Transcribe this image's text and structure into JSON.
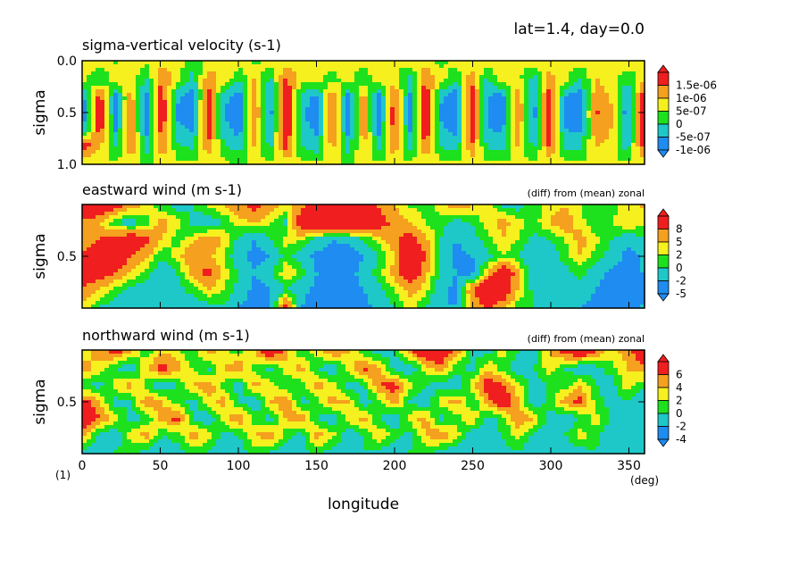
{
  "header": {
    "label": "lat=1.4, day=0.0"
  },
  "shared_axis": {
    "xlabel": "longitude",
    "x_ticks": [
      "0",
      "50",
      "100",
      "150",
      "200",
      "250",
      "300",
      "350"
    ],
    "xlim": [
      0,
      360
    ],
    "x_unit": "(deg)",
    "page_tag": "(1)"
  },
  "chart_data": [
    {
      "type": "heatmap",
      "title": "sigma-vertical velocity (s-1)",
      "subtitle": "",
      "xlabel": "longitude",
      "ylabel": "sigma",
      "y_ticks": [
        "0.0",
        "0.5",
        "1.0"
      ],
      "ylim": [
        0.0,
        1.0
      ],
      "y_inverted": true,
      "legend_labels": [
        "1.5e-06",
        "1e-06",
        "5e-07",
        "0",
        "-5e-07",
        "-1e-06"
      ],
      "levels": [
        -1.5e-06,
        -1e-06,
        -5e-07,
        0,
        5e-07,
        1e-06,
        1.5e-06
      ],
      "values": [
        [
          0.2,
          0.3,
          -0.1,
          0.4,
          0.1,
          0.3,
          0.2,
          -0.2,
          0.1,
          0.5,
          0.2,
          -0.1,
          0.3,
          0.2,
          0.1,
          0.4,
          0.2,
          0.1,
          0.3,
          0.2,
          0.0,
          0.2,
          0.3,
          -0.1,
          0.2,
          0.1,
          0.3,
          0.2,
          0.1,
          0.2,
          0.3,
          0.1,
          0.2,
          0.1,
          0.2,
          0.3,
          0.1
        ],
        [
          0.1,
          -0.6,
          0.4,
          0.3,
          -0.5,
          1.1,
          0.2,
          -0.8,
          0.9,
          0.3,
          -0.4,
          0.6,
          -0.7,
          1.2,
          0.3,
          0.2,
          -0.3,
          0.4,
          -0.6,
          0.5,
          0.2,
          -0.7,
          1.0,
          0.3,
          -0.5,
          0.9,
          -0.6,
          0.4,
          0.2,
          -0.8,
          0.7,
          0.2,
          -0.6,
          0.5,
          0.3,
          -0.4,
          0.2
        ],
        [
          -0.9,
          1.3,
          -1.2,
          0.8,
          -1.3,
          1.4,
          -0.9,
          -1.2,
          1.2,
          -0.8,
          -1.3,
          0.9,
          -1.2,
          1.6,
          -0.7,
          -1.1,
          1.0,
          -1.2,
          0.8,
          -1.3,
          1.2,
          -1.1,
          1.5,
          -0.9,
          -1.3,
          1.4,
          -1.0,
          -1.2,
          0.9,
          -1.1,
          1.4,
          -1.0,
          -1.2,
          0.9,
          0.4,
          -1.1,
          1.3
        ],
        [
          -1.2,
          1.6,
          -1.3,
          1.0,
          -1.4,
          1.6,
          -1.1,
          -1.3,
          1.5,
          -1.0,
          -1.4,
          1.1,
          -1.3,
          1.8,
          -0.9,
          -1.3,
          1.2,
          -1.4,
          1.0,
          -1.4,
          1.4,
          -1.3,
          1.7,
          -1.1,
          -1.4,
          1.6,
          -1.2,
          -1.3,
          1.1,
          -1.3,
          1.6,
          -1.2,
          -1.3,
          1.1,
          0.6,
          -1.3,
          1.6
        ],
        [
          -0.8,
          1.4,
          -1.1,
          0.9,
          -1.2,
          1.3,
          -0.9,
          -1.1,
          1.3,
          -0.8,
          -1.2,
          0.9,
          -1.1,
          1.7,
          -0.8,
          -1.1,
          1.0,
          -1.2,
          0.9,
          -1.2,
          1.3,
          -1.1,
          1.5,
          -0.9,
          -1.2,
          1.4,
          -1.0,
          -1.1,
          0.9,
          -1.1,
          1.5,
          -1.0,
          -1.1,
          0.9,
          0.5,
          -1.2,
          1.5
        ],
        [
          1.3,
          0.6,
          -0.6,
          1.1,
          -0.8,
          1.0,
          -0.4,
          -0.7,
          1.0,
          -0.5,
          -0.8,
          0.6,
          -0.7,
          1.3,
          -0.5,
          -0.8,
          0.7,
          -0.8,
          0.6,
          -0.7,
          0.9,
          -0.7,
          1.1,
          -0.5,
          -0.8,
          1.0,
          -0.6,
          -0.7,
          0.6,
          -0.7,
          1.1,
          -0.6,
          -0.7,
          0.6,
          0.3,
          -0.8,
          1.1
        ],
        [
          0.2,
          0.1,
          0.0,
          0.2,
          -0.1,
          0.2,
          0.1,
          0.0,
          0.2,
          0.1,
          -0.1,
          0.1,
          0.0,
          0.3,
          0.1,
          0.0,
          0.1,
          -0.1,
          0.1,
          0.0,
          0.2,
          0.0,
          0.2,
          0.1,
          0.0,
          0.2,
          0.1,
          0.0,
          0.1,
          0.0,
          0.2,
          0.1,
          0.0,
          0.1,
          0.1,
          0.0,
          0.2
        ]
      ]
    },
    {
      "type": "heatmap",
      "title": "eastward wind (m s-1)",
      "subtitle": "(diff) from (mean) zonal",
      "xlabel": "longitude",
      "ylabel": "sigma",
      "y_ticks": [
        "0.5"
      ],
      "ylim": [
        0.0,
        1.0
      ],
      "y_inverted": true,
      "legend_labels": [
        "8",
        "5",
        "2",
        "0",
        "-2",
        "-5"
      ],
      "levels": [
        -8,
        -5,
        -2,
        0,
        2,
        5,
        8
      ],
      "values": [
        [
          9,
          9,
          6,
          3,
          1,
          -1,
          -3,
          -2,
          0,
          2,
          4,
          6,
          3,
          1,
          4,
          9,
          9,
          7,
          6,
          5,
          2,
          0,
          -1,
          1,
          3,
          2,
          1,
          -2,
          -3,
          -1,
          1,
          2,
          0,
          -2,
          -1,
          1,
          2
        ],
        [
          4,
          2,
          -2,
          -4,
          -1,
          3,
          1,
          -3,
          -4,
          -2,
          1,
          2,
          0,
          -3,
          9,
          9,
          9,
          9,
          9,
          7,
          4,
          2,
          0,
          -1,
          -3,
          -2,
          1,
          3,
          1,
          -1,
          2,
          4,
          1,
          -2,
          0,
          2,
          1
        ],
        [
          3,
          5,
          7,
          9,
          6,
          2,
          -1,
          1,
          4,
          2,
          -3,
          -5,
          -2,
          1,
          0,
          -3,
          -5,
          -4,
          -2,
          1,
          4,
          7,
          3,
          -2,
          -5,
          -3,
          -1,
          2,
          0,
          -3,
          -2,
          0,
          3,
          1,
          -2,
          -4,
          -3
        ],
        [
          6,
          9,
          9,
          5,
          3,
          -2,
          1,
          5,
          3,
          0,
          -4,
          -6,
          -5,
          -1,
          -3,
          -6,
          -6,
          -7,
          -5,
          -2,
          2,
          9,
          5,
          -2,
          -6,
          -5,
          -3,
          0,
          -2,
          -5,
          -4,
          -1,
          2,
          -1,
          -3,
          -6,
          -5
        ],
        [
          9,
          7,
          5,
          2,
          -1,
          -4,
          -2,
          3,
          6,
          1,
          -2,
          -5,
          -3,
          2,
          -1,
          -5,
          -6,
          -6,
          -4,
          -1,
          3,
          9,
          3,
          -3,
          -5,
          -6,
          2,
          9,
          3,
          -4,
          -5,
          -3,
          -1,
          -4,
          -6,
          -6,
          -5
        ],
        [
          4,
          2,
          -1,
          -3,
          -4,
          -5,
          -3,
          -1,
          2,
          0,
          -3,
          -6,
          -5,
          -2,
          -4,
          -6,
          -5,
          -6,
          -5,
          -3,
          0,
          3,
          1,
          -4,
          -6,
          5,
          9,
          9,
          2,
          -3,
          -4,
          -5,
          -3,
          -5,
          -6,
          -6,
          -6
        ],
        [
          1,
          -2,
          -3,
          -5,
          -4,
          -3,
          -2,
          -4,
          -3,
          -2,
          -5,
          -6,
          -6,
          7,
          -5,
          -6,
          -6,
          -5,
          -6,
          -4,
          -2,
          1,
          -2,
          -5,
          -5,
          2,
          6,
          3,
          -1,
          -2,
          -4,
          -5,
          -5,
          -6,
          -6,
          -6,
          -5
        ]
      ]
    },
    {
      "type": "heatmap",
      "title": "northward wind (m s-1)",
      "subtitle": "(diff) from (mean) zonal",
      "xlabel": "longitude",
      "ylabel": "sigma",
      "y_ticks": [
        "0.5"
      ],
      "ylim": [
        0.0,
        1.0
      ],
      "y_inverted": true,
      "legend_labels": [
        "6",
        "4",
        "2",
        "0",
        "-2",
        "-4"
      ],
      "levels": [
        -6,
        -4,
        -2,
        0,
        2,
        4,
        6
      ],
      "values": [
        [
          1,
          3,
          5,
          2,
          -1,
          2,
          1,
          -2,
          3,
          1,
          -1,
          2,
          7,
          3,
          -2,
          1,
          4,
          2,
          -1,
          -3,
          -2,
          3,
          7,
          7,
          3,
          -2,
          -3,
          1,
          -2,
          -3,
          2,
          5,
          7,
          4,
          1,
          3,
          6
        ],
        [
          3,
          1,
          -2,
          -4,
          2,
          5,
          3,
          0,
          -3,
          2,
          4,
          -1,
          -3,
          1,
          3,
          -2,
          -4,
          1,
          5,
          2,
          -3,
          -4,
          1,
          3,
          -1,
          -3,
          2,
          -1,
          -4,
          -2,
          1,
          -2,
          -4,
          -3,
          -1,
          2,
          3
        ],
        [
          -2,
          -3,
          1,
          3,
          -1,
          -4,
          -2,
          2,
          4,
          -1,
          -3,
          3,
          1,
          -2,
          -1,
          3,
          1,
          -3,
          -2,
          4,
          5,
          1,
          -2,
          -3,
          -4,
          1,
          6,
          4,
          1,
          -3,
          -2,
          -1,
          2,
          -2,
          -3,
          1,
          -1
        ],
        [
          5,
          2,
          -3,
          -2,
          4,
          2,
          -1,
          -3,
          1,
          3,
          -2,
          -4,
          2,
          4,
          -3,
          -1,
          3,
          2,
          -4,
          -1,
          3,
          -2,
          -4,
          1,
          3,
          -2,
          3,
          7,
          2,
          -4,
          -1,
          3,
          5,
          -1,
          -3,
          -2,
          -4
        ],
        [
          7,
          4,
          1,
          -3,
          -2,
          3,
          5,
          -2,
          -4,
          1,
          4,
          -1,
          -3,
          2,
          4,
          -2,
          -4,
          1,
          3,
          -2,
          -4,
          1,
          3,
          -3,
          -1,
          2,
          -3,
          -1,
          4,
          2,
          -3,
          -4,
          -2,
          1,
          -2,
          -4,
          -3
        ],
        [
          2,
          -3,
          -4,
          1,
          3,
          -2,
          -1,
          3,
          1,
          -3,
          -2,
          2,
          4,
          -1,
          -3,
          3,
          1,
          -4,
          -2,
          2,
          -1,
          -3,
          2,
          4,
          1,
          -4,
          -3,
          -2,
          1,
          -3,
          -4,
          -2,
          1,
          -1,
          -4,
          -3,
          -2
        ],
        [
          -3,
          -4,
          -2,
          -1,
          -3,
          -4,
          -3,
          -1,
          -2,
          -4,
          -3,
          -1,
          -2,
          -4,
          -3,
          -1,
          -3,
          -4,
          -2,
          -3,
          -4,
          -2,
          -1,
          -3,
          -4,
          -3,
          -4,
          -3,
          -2,
          -4,
          -3,
          -4,
          -3,
          -2,
          -4,
          -3,
          -4
        ]
      ]
    }
  ],
  "colors": {
    "palette": [
      "#1e8cf0",
      "#1ec8c8",
      "#1ee11e",
      "#f5f01e",
      "#f5a01e",
      "#f01e1e"
    ],
    "under": "#1e8cf0",
    "over": "#f01e1e",
    "axis": "#000000"
  }
}
